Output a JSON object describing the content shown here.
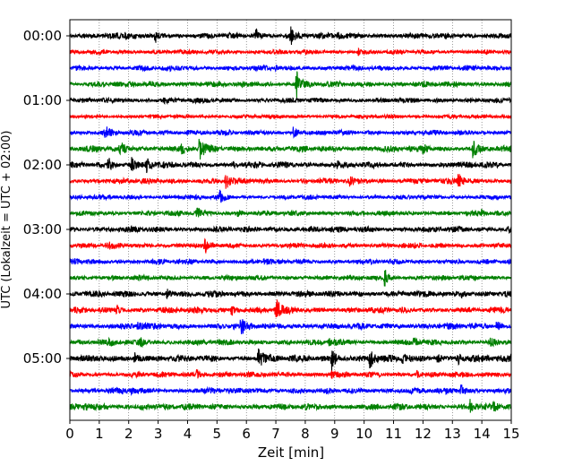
{
  "chart_data": {
    "type": "line",
    "title": "",
    "xlabel": "Zeit  [min]",
    "ylabel": "UTC (Lokalzeit = UTC + 02:00)",
    "xlim": [
      0,
      15
    ],
    "x_ticks": [
      0,
      1,
      2,
      3,
      4,
      5,
      6,
      7,
      8,
      9,
      10,
      11,
      12,
      13,
      14,
      15
    ],
    "y_tick_labels": [
      "00:00",
      "01:00",
      "02:00",
      "03:00",
      "04:00",
      "05:00"
    ],
    "grid": "vertical dotted at each minute",
    "trace_minutes": 15,
    "trace_count": 24,
    "color_cycle": [
      "#000000",
      "#ff0000",
      "#0000ff",
      "#008000"
    ],
    "traces": [
      {
        "start": "00:00",
        "color": "#000000",
        "noise": 0.5,
        "events": [
          {
            "t": 2.9,
            "amp": 1.0
          },
          {
            "t": 6.3,
            "amp": 1.2
          },
          {
            "t": 7.5,
            "amp": 1.4
          },
          {
            "t": 1.9,
            "amp": 0.5
          },
          {
            "t": 9.1,
            "amp": 0.5
          }
        ]
      },
      {
        "start": "00:15",
        "color": "#ff0000",
        "noise": 0.4,
        "events": [
          {
            "t": 6.3,
            "amp": 0.3
          },
          {
            "t": 9.8,
            "amp": 0.4
          }
        ]
      },
      {
        "start": "00:30",
        "color": "#0000ff",
        "noise": 0.45,
        "events": [
          {
            "t": 7.0,
            "amp": 0.3
          }
        ]
      },
      {
        "start": "00:45",
        "color": "#008000",
        "noise": 0.5,
        "events": [
          {
            "t": 7.7,
            "amp": 2.2
          },
          {
            "t": 2.7,
            "amp": 0.3
          }
        ]
      },
      {
        "start": "01:00",
        "color": "#000000",
        "noise": 0.45,
        "events": [
          {
            "t": 3.2,
            "amp": 0.3
          }
        ]
      },
      {
        "start": "01:15",
        "color": "#ff0000",
        "noise": 0.35,
        "events": []
      },
      {
        "start": "01:30",
        "color": "#0000ff",
        "noise": 0.45,
        "events": [
          {
            "t": 1.2,
            "amp": 1.0
          },
          {
            "t": 7.6,
            "amp": 0.9
          },
          {
            "t": 4.0,
            "amp": 0.4
          }
        ]
      },
      {
        "start": "01:45",
        "color": "#008000",
        "noise": 0.55,
        "events": [
          {
            "t": 1.7,
            "amp": 1.2
          },
          {
            "t": 4.4,
            "amp": 2.0
          },
          {
            "t": 13.7,
            "amp": 1.3
          },
          {
            "t": 3.8,
            "amp": 0.5
          },
          {
            "t": 12.0,
            "amp": 0.5
          }
        ]
      },
      {
        "start": "02:00",
        "color": "#000000",
        "noise": 0.55,
        "events": [
          {
            "t": 1.3,
            "amp": 1.2
          },
          {
            "t": 2.1,
            "amp": 0.9
          },
          {
            "t": 2.6,
            "amp": 1.1
          },
          {
            "t": 5.5,
            "amp": 0.4
          },
          {
            "t": 9.1,
            "amp": 0.4
          }
        ]
      },
      {
        "start": "02:15",
        "color": "#ff0000",
        "noise": 0.5,
        "events": [
          {
            "t": 5.3,
            "amp": 1.2
          },
          {
            "t": 9.5,
            "amp": 0.6
          },
          {
            "t": 13.2,
            "amp": 1.2
          }
        ]
      },
      {
        "start": "02:30",
        "color": "#0000ff",
        "noise": 0.4,
        "events": [
          {
            "t": 5.1,
            "amp": 0.9
          }
        ]
      },
      {
        "start": "02:45",
        "color": "#008000",
        "noise": 0.45,
        "events": [
          {
            "t": 4.3,
            "amp": 1.2
          },
          {
            "t": 5.7,
            "amp": 0.5
          },
          {
            "t": 14.0,
            "amp": 0.4
          }
        ]
      },
      {
        "start": "03:00",
        "color": "#000000",
        "noise": 0.5,
        "events": [
          {
            "t": 8.2,
            "amp": 0.3
          },
          {
            "t": 14.9,
            "amp": 0.4
          }
        ]
      },
      {
        "start": "03:15",
        "color": "#ff0000",
        "noise": 0.45,
        "events": [
          {
            "t": 4.6,
            "amp": 0.8
          },
          {
            "t": 1.3,
            "amp": 0.4
          }
        ]
      },
      {
        "start": "03:30",
        "color": "#0000ff",
        "noise": 0.45,
        "events": [
          {
            "t": 0.2,
            "amp": 0.5
          },
          {
            "t": 6.6,
            "amp": 0.4
          }
        ]
      },
      {
        "start": "03:45",
        "color": "#008000",
        "noise": 0.45,
        "events": [
          {
            "t": 10.7,
            "amp": 1.3
          }
        ]
      },
      {
        "start": "04:00",
        "color": "#000000",
        "noise": 0.55,
        "events": [
          {
            "t": 3.3,
            "amp": 0.7
          },
          {
            "t": 13.3,
            "amp": 0.4
          }
        ]
      },
      {
        "start": "04:15",
        "color": "#ff0000",
        "noise": 0.55,
        "events": [
          {
            "t": 7.0,
            "amp": 1.9
          },
          {
            "t": 5.5,
            "amp": 0.8
          },
          {
            "t": 1.6,
            "amp": 0.5
          }
        ]
      },
      {
        "start": "04:30",
        "color": "#0000ff",
        "noise": 0.55,
        "events": [
          {
            "t": 5.8,
            "amp": 1.2
          },
          {
            "t": 14.5,
            "amp": 0.8
          },
          {
            "t": 2.3,
            "amp": 0.5
          }
        ]
      },
      {
        "start": "04:45",
        "color": "#008000",
        "noise": 0.5,
        "events": [
          {
            "t": 1.3,
            "amp": 0.6
          },
          {
            "t": 2.4,
            "amp": 0.6
          },
          {
            "t": 8.8,
            "amp": 0.7
          },
          {
            "t": 11.7,
            "amp": 0.6
          },
          {
            "t": 14.3,
            "amp": 0.5
          }
        ]
      },
      {
        "start": "05:00",
        "color": "#000000",
        "noise": 0.6,
        "events": [
          {
            "t": 6.4,
            "amp": 1.9
          },
          {
            "t": 8.9,
            "amp": 1.8
          },
          {
            "t": 10.2,
            "amp": 1.6
          },
          {
            "t": 2.2,
            "amp": 0.9
          },
          {
            "t": 11.3,
            "amp": 0.7
          },
          {
            "t": 12.5,
            "amp": 0.7
          },
          {
            "t": 13.2,
            "amp": 0.7
          }
        ]
      },
      {
        "start": "05:15",
        "color": "#ff0000",
        "noise": 0.5,
        "events": [
          {
            "t": 4.3,
            "amp": 0.8
          },
          {
            "t": 11.8,
            "amp": 0.5
          },
          {
            "t": 8.9,
            "amp": 0.5
          }
        ]
      },
      {
        "start": "05:30",
        "color": "#0000ff",
        "noise": 0.5,
        "events": [
          {
            "t": 13.3,
            "amp": 1.0
          },
          {
            "t": 2.1,
            "amp": 0.5
          },
          {
            "t": 6.0,
            "amp": 0.4
          }
        ]
      },
      {
        "start": "05:45",
        "color": "#008000",
        "noise": 0.55,
        "events": [
          {
            "t": 0.5,
            "amp": 0.6
          },
          {
            "t": 13.6,
            "amp": 1.0
          },
          {
            "t": 14.4,
            "amp": 0.5
          },
          {
            "t": 2.4,
            "amp": 0.4
          }
        ]
      }
    ]
  }
}
